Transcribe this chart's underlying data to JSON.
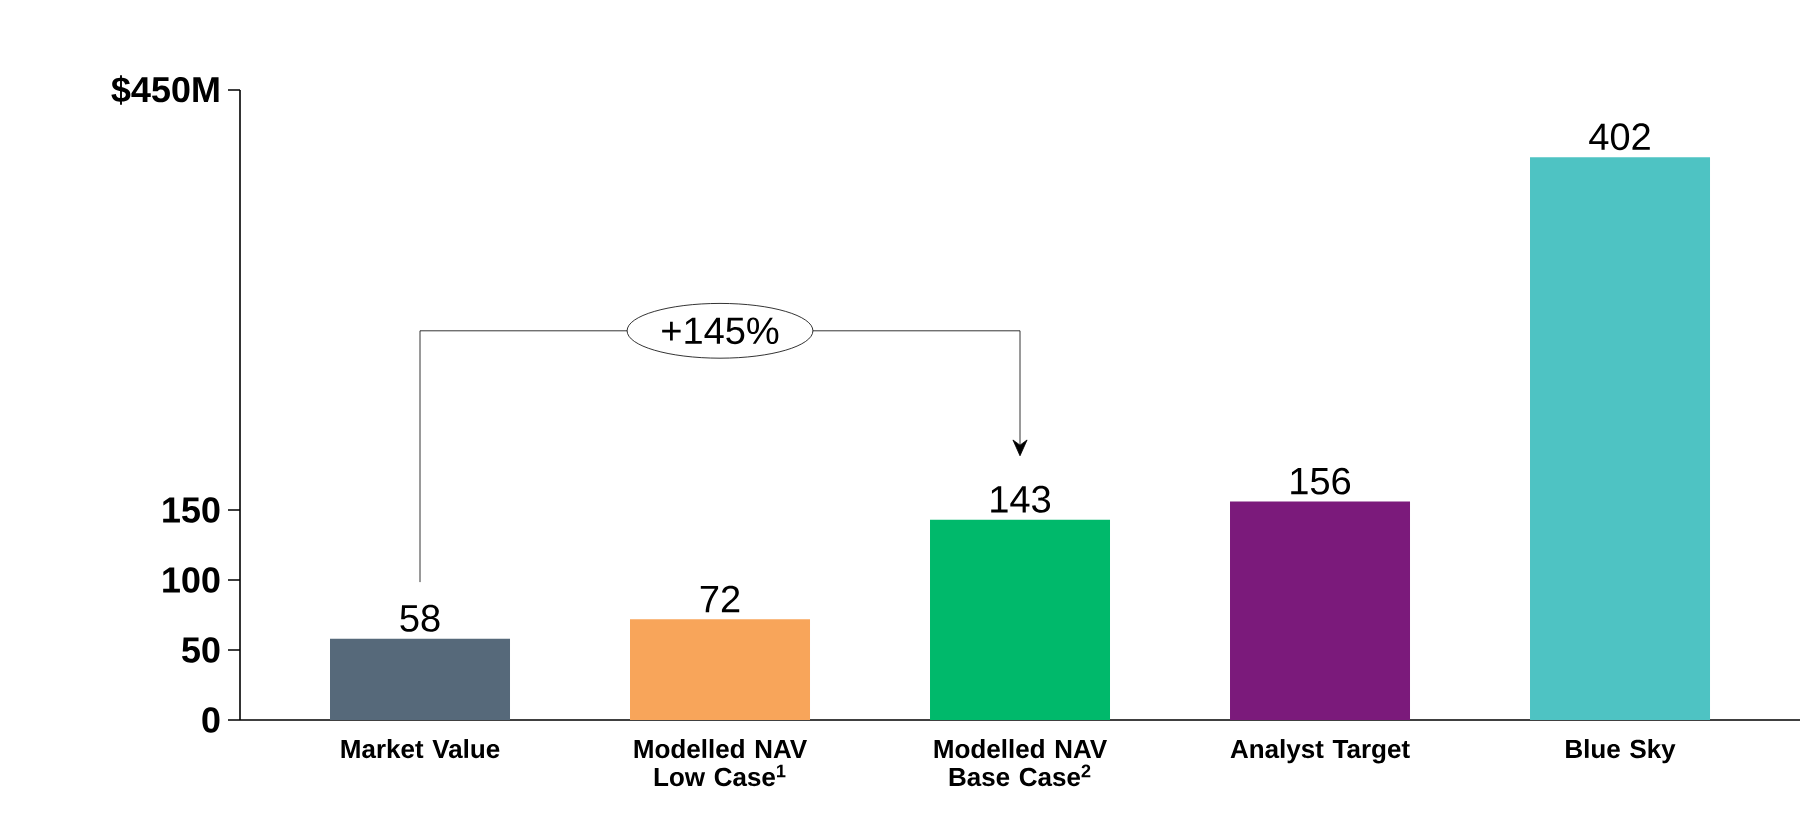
{
  "chart_data": {
    "type": "bar",
    "categories": [
      "Market Value",
      "Modelled NAV Low Case$^{1}$",
      "Modelled NAV Base Case$^{2}$",
      "Analyst Target",
      "Blue Sky"
    ],
    "values": [
      58,
      72,
      143,
      156,
      402
    ],
    "colors": [
      "#56697a",
      "#f8a55a",
      "#00b96b",
      "#7b1a7b",
      "#4ec3c3"
    ],
    "ylim": [
      0,
      450
    ],
    "yticks": [
      0,
      50,
      100,
      150,
      {
        "value": 450,
        "label": "$450M"
      }
    ],
    "data_labels": true,
    "annotations": [
      "+145%"
    ]
  }
}
